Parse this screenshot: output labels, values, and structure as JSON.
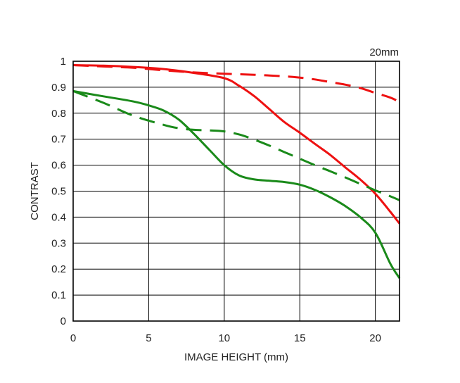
{
  "chart_data": {
    "type": "line",
    "title": "",
    "annotation": "20mm",
    "xlabel": "IMAGE HEIGHT (mm)",
    "ylabel": "CONTRAST",
    "xlim": [
      0,
      21.6
    ],
    "ylim": [
      0,
      1
    ],
    "xticks": [
      0,
      5,
      10,
      15,
      20
    ],
    "xtick_labels": [
      "0",
      "5",
      "10",
      "15",
      "20"
    ],
    "yticks": [
      0,
      0.1,
      0.2,
      0.3,
      0.4,
      0.5,
      0.6,
      0.7,
      0.8,
      0.9,
      1
    ],
    "ytick_labels": [
      "0",
      "0.1",
      "0.2",
      "0.3",
      "0.4",
      "0.5",
      "0.6",
      "0.7",
      "0.8",
      "0.9",
      "1"
    ],
    "grid": true,
    "legend": "none",
    "series": [
      {
        "color": "#ee1111",
        "dash": "solid",
        "x": [
          0,
          2,
          4,
          6,
          8,
          10,
          11,
          12,
          13,
          14,
          15,
          16,
          17,
          18,
          19,
          20,
          21,
          21.6
        ],
        "y": [
          0.985,
          0.983,
          0.978,
          0.97,
          0.955,
          0.935,
          0.905,
          0.865,
          0.815,
          0.765,
          0.725,
          0.682,
          0.64,
          0.592,
          0.545,
          0.49,
          0.42,
          0.375
        ]
      },
      {
        "color": "#ee1111",
        "dash": "dashed",
        "x": [
          0,
          2,
          4,
          6,
          8,
          10,
          12,
          14,
          15,
          16,
          17,
          18,
          19,
          20,
          21,
          21.6
        ],
        "y": [
          0.985,
          0.98,
          0.975,
          0.965,
          0.957,
          0.952,
          0.948,
          0.942,
          0.937,
          0.93,
          0.92,
          0.91,
          0.897,
          0.878,
          0.86,
          0.843
        ]
      },
      {
        "color": "#1a8a1a",
        "dash": "solid",
        "x": [
          0,
          2,
          4,
          5,
          6,
          7,
          8,
          9,
          10,
          11,
          12,
          13,
          14,
          15,
          16,
          17,
          18,
          19,
          20,
          21,
          21.6
        ],
        "y": [
          0.885,
          0.865,
          0.845,
          0.83,
          0.81,
          0.775,
          0.72,
          0.66,
          0.6,
          0.56,
          0.545,
          0.54,
          0.535,
          0.525,
          0.505,
          0.477,
          0.443,
          0.4,
          0.34,
          0.22,
          0.165
        ]
      },
      {
        "color": "#1a8a1a",
        "dash": "dashed",
        "x": [
          0,
          2,
          4,
          6,
          7,
          8,
          9,
          10,
          11,
          12,
          13,
          14,
          15,
          16,
          17,
          18,
          19,
          20,
          21,
          21.6
        ],
        "y": [
          0.885,
          0.84,
          0.79,
          0.755,
          0.742,
          0.736,
          0.734,
          0.73,
          0.718,
          0.698,
          0.675,
          0.65,
          0.625,
          0.6,
          0.577,
          0.553,
          0.528,
          0.503,
          0.48,
          0.465
        ]
      }
    ]
  }
}
